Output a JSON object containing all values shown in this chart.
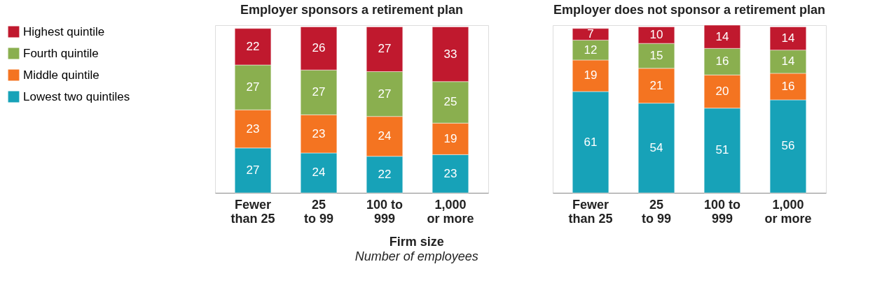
{
  "chart_data": [
    {
      "type": "bar",
      "stacked": true,
      "data_labels": true,
      "legend": "left",
      "title": "Employer sponsors a retirement plan",
      "xlabel": "Firm size",
      "annotations": [
        "Number of employees"
      ],
      "categories": [
        "Fewer\nthan 25",
        "25\nto 99",
        "100 to\n999",
        "1,000\nor more"
      ],
      "series": [
        {
          "name": "Lowest two quintiles",
          "color": "#17a2b8",
          "values": [
            27,
            24,
            22,
            23
          ]
        },
        {
          "name": "Middle quintile",
          "color": "#f47421",
          "values": [
            23,
            23,
            24,
            19
          ]
        },
        {
          "name": "Fourth quintile",
          "color": "#8aaf4f",
          "values": [
            27,
            27,
            27,
            25
          ]
        },
        {
          "name": "Highest quintile",
          "color": "#c0192e",
          "values": [
            22,
            26,
            27,
            33
          ]
        }
      ]
    },
    {
      "type": "bar",
      "stacked": true,
      "data_labels": true,
      "title": "Employer does not sponsor a retirement plan",
      "categories": [
        "Fewer\nthan 25",
        "25\nto 99",
        "100 to\n999",
        "1,000\nor more"
      ],
      "series": [
        {
          "name": "Lowest two quintiles",
          "color": "#17a2b8",
          "values": [
            61,
            54,
            51,
            56
          ]
        },
        {
          "name": "Middle quintile",
          "color": "#f47421",
          "values": [
            19,
            21,
            20,
            16
          ]
        },
        {
          "name": "Fourth quintile",
          "color": "#8aaf4f",
          "values": [
            12,
            15,
            16,
            14
          ]
        },
        {
          "name": "Highest quintile",
          "color": "#c0192e",
          "values": [
            7,
            10,
            14,
            14
          ]
        }
      ]
    }
  ]
}
